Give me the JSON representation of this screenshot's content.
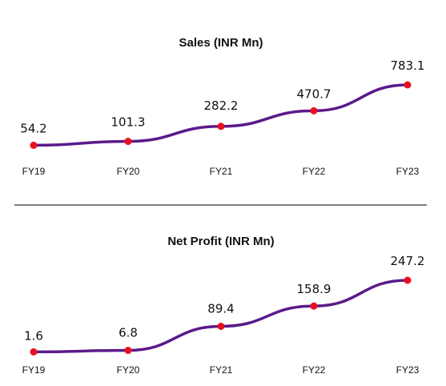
{
  "chart_data": [
    {
      "type": "line",
      "title": "Sales (INR Mn)",
      "categories": [
        "FY19",
        "FY20",
        "FY21",
        "FY22",
        "FY23"
      ],
      "values": [
        54.2,
        101.3,
        282.2,
        470.7,
        783.1
      ],
      "line_color": "#5b1a8b",
      "marker_color": "#e8101e",
      "grid": false,
      "legend": "none"
    },
    {
      "type": "line",
      "title": "Net Profit (INR Mn)",
      "categories": [
        "FY19",
        "FY20",
        "FY21",
        "FY22",
        "FY23"
      ],
      "values": [
        1.6,
        6.8,
        89.4,
        158.9,
        247.2
      ],
      "line_color": "#5b1a8b",
      "marker_color": "#e8101e",
      "grid": false,
      "legend": "none"
    }
  ],
  "divider_color": "#333333"
}
